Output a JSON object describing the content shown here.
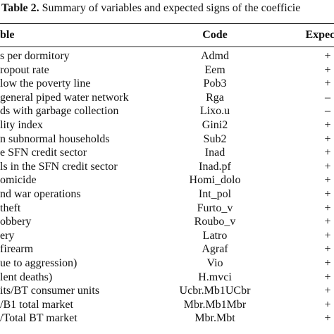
{
  "title": {
    "label": "Table 2.",
    "text": "Summary of variables and expected signs of the coefficie"
  },
  "table": {
    "header": [
      "ble",
      "Code",
      "Expected"
    ],
    "rows": [
      [
        "s per dormitory",
        "Admd",
        "+"
      ],
      [
        "ropout rate",
        "Eem",
        "+"
      ],
      [
        "low the poverty line",
        "Pob3",
        "+"
      ],
      [
        "general piped water network",
        "Rga",
        "–"
      ],
      [
        "ds with garbage collection",
        "Lixo.u",
        "–"
      ],
      [
        "lity index",
        "Gini2",
        "+"
      ],
      [
        "n subnormal households",
        "Sub2",
        "+"
      ],
      [
        "e SFN credit sector",
        "Inad",
        "+"
      ],
      [
        "ls in the SFN credit sector",
        "Inad.pf",
        "+"
      ],
      [
        "omicide",
        "Homi_dolo",
        "+"
      ],
      [
        "nd war operations",
        "Int_pol",
        "+"
      ],
      [
        "theft",
        "Furto_v",
        "+"
      ],
      [
        "obbery",
        "Roubo_v",
        "+"
      ],
      [
        "ery",
        "Latro",
        "+"
      ],
      [
        "firearm",
        "Agraf",
        "+"
      ],
      [
        "ue to aggression)",
        "Vio",
        "+"
      ],
      [
        "lent deaths)",
        "H.mvci",
        "+"
      ],
      [
        "its/BT consumer units",
        "Ucbr.Mb1UCbr",
        "+"
      ],
      [
        "/B1 total market",
        "Mbr.Mb1Mbr",
        "+"
      ],
      [
        "/Total BT market",
        "Mbr.Mbt",
        "+"
      ]
    ]
  }
}
